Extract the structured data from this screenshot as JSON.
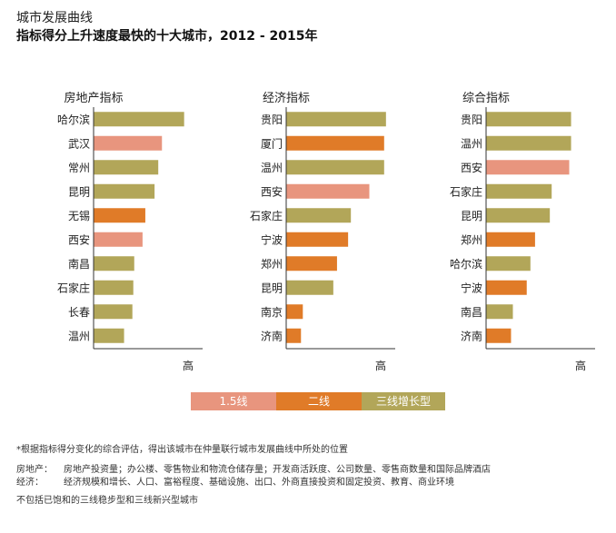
{
  "header": {
    "title": "城市发展曲线",
    "subtitle": "指标得分上升速度最快的十大城市，2012 - 2015年"
  },
  "chart_data": {
    "type": "bar",
    "orientation": "horizontal",
    "legend": [
      {
        "key": "tier1_5",
        "label": "1.5线",
        "color": "#e8957e"
      },
      {
        "key": "tier2",
        "label": "二线",
        "color": "#e07b28"
      },
      {
        "key": "tier3",
        "label": "三线增长型",
        "color": "#b2a659"
      }
    ],
    "panels": [
      {
        "title": "房地产指标",
        "axis_label": "高",
        "categories": [
          "哈尔滨",
          "武汉",
          "常州",
          "昆明",
          "无锡",
          "西安",
          "南昌",
          "石家庄",
          "长春",
          "温州"
        ],
        "values": [
          98,
          74,
          70,
          66,
          56,
          53,
          44,
          43,
          42,
          33
        ],
        "groups": [
          "tier3",
          "tier1_5",
          "tier3",
          "tier3",
          "tier2",
          "tier1_5",
          "tier3",
          "tier3",
          "tier3",
          "tier3"
        ],
        "xlim": [
          0,
          118
        ]
      },
      {
        "title": "经济指标",
        "axis_label": "高",
        "categories": [
          "贵阳",
          "厦门",
          "温州",
          "西安",
          "石家庄",
          "宁波",
          "郑州",
          "昆明",
          "南京",
          "济南"
        ],
        "values": [
          108,
          106,
          106,
          90,
          70,
          67,
          55,
          51,
          18,
          16
        ],
        "groups": [
          "tier3",
          "tier2",
          "tier3",
          "tier1_5",
          "tier3",
          "tier2",
          "tier2",
          "tier3",
          "tier2",
          "tier2"
        ],
        "xlim": [
          0,
          118
        ]
      },
      {
        "title": "综合指标",
        "axis_label": "高",
        "categories": [
          "贵阳",
          "温州",
          "西安",
          "石家庄",
          "昆明",
          "郑州",
          "哈尔滨",
          "宁波",
          "南昌",
          "济南"
        ],
        "values": [
          92,
          92,
          90,
          71,
          69,
          53,
          48,
          44,
          29,
          27
        ],
        "groups": [
          "tier3",
          "tier3",
          "tier1_5",
          "tier3",
          "tier3",
          "tier2",
          "tier3",
          "tier2",
          "tier3",
          "tier2"
        ],
        "xlim": [
          0,
          118
        ]
      }
    ]
  },
  "footnotes": {
    "note": "*根据指标得分变化的综合评估，得出该城市在仲量联行城市发展曲线中所处的位置",
    "definitions": [
      {
        "term": "房地产：",
        "text": "房地产投资量；办公楼、零售物业和物流仓储存量；开发商活跃度、公司数量、零售商数量和国际品牌酒店"
      },
      {
        "term": "经济：",
        "text": "经济规模和增长、人口、富裕程度、基础设施、出口、外商直接投资和固定投资、教育、商业环境"
      }
    ],
    "last": "不包括已饱和的三线稳步型和三线新兴型城市"
  }
}
